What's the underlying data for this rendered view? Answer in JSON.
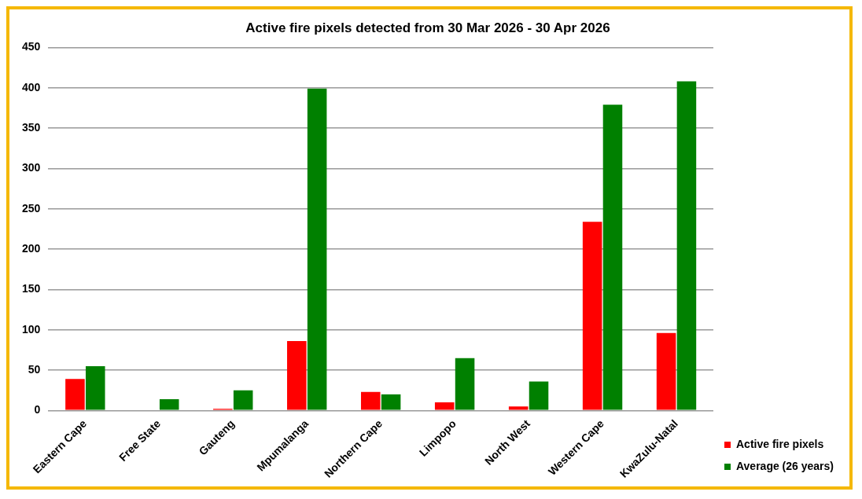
{
  "chart_data": {
    "type": "bar",
    "title": "Active fire pixels detected from 30 Mar 2026 - 30 Apr 2026",
    "categories": [
      "Eastern Cape",
      "Free State",
      "Gauteng",
      "Mpumalanga",
      "Northern Cape",
      "Limpopo",
      "North West",
      "Western Cape",
      "KwaZulu-Natal"
    ],
    "series": [
      {
        "name": "Active fire pixels",
        "color": "#ff0000",
        "values": [
          39,
          0,
          2,
          86,
          23,
          10,
          5,
          234,
          96
        ]
      },
      {
        "name": "Average (26 years)",
        "color": "#008000",
        "values": [
          55,
          14,
          25,
          399,
          20,
          65,
          36,
          379,
          408
        ]
      }
    ],
    "ylim": [
      0,
      450
    ],
    "yticks": [
      0,
      50,
      100,
      150,
      200,
      250,
      300,
      350,
      400,
      450
    ],
    "grid": "y",
    "legend": "right"
  }
}
